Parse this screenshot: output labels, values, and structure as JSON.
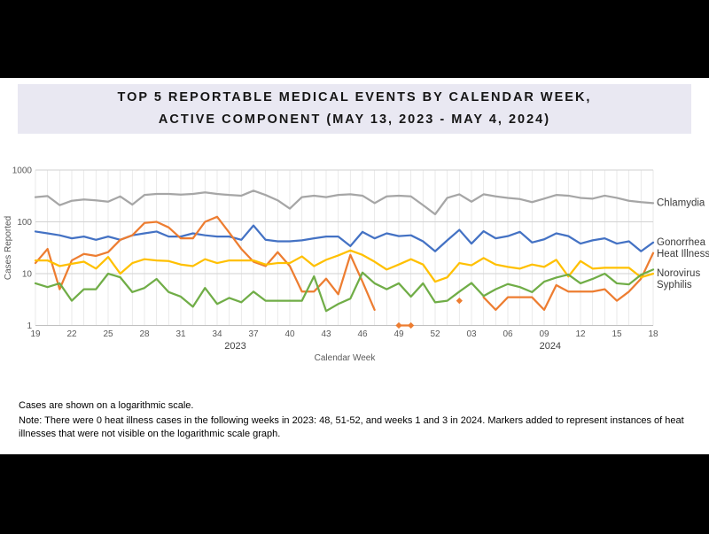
{
  "title": {
    "line1": "TOP 5 REPORTABLE MEDICAL EVENTS BY CALENDAR WEEK,",
    "line2": "ACTIVE COMPONENT (MAY 13, 2023 - MAY 4, 2024)",
    "banner_color": "#e9e8f2"
  },
  "footnotes": {
    "scale": "Cases are shown on a logarithmic scale.",
    "note": "Note: There were 0 heat illness cases in the following weeks in 2023: 48, 51-52, and weeks 1 and 3 in 2024. Markers added to represent instances of heat illnesses that were not visible on the logarithmic scale graph."
  },
  "chart_data": {
    "type": "line",
    "y_scale": "log",
    "ylim": [
      1,
      1000
    ],
    "y_ticks": [
      1,
      10,
      100,
      1000
    ],
    "xlabel": "Calendar Week",
    "ylabel": "Cases Reported",
    "grid": "on",
    "legend_position": "right-of-line-ends",
    "categories": [
      "19",
      "20",
      "21",
      "22",
      "23",
      "24",
      "25",
      "26",
      "27",
      "28",
      "29",
      "30",
      "31",
      "32",
      "33",
      "34",
      "35",
      "36",
      "37",
      "38",
      "39",
      "40",
      "41",
      "42",
      "43",
      "44",
      "45",
      "46",
      "47",
      "48",
      "49",
      "50",
      "51",
      "52",
      "01",
      "02",
      "03",
      "04",
      "05",
      "06",
      "07",
      "08",
      "09",
      "10",
      "11",
      "12",
      "13",
      "14",
      "15",
      "16",
      "17",
      "18"
    ],
    "x_tick_labels": [
      "19",
      "22",
      "25",
      "28",
      "31",
      "34",
      "37",
      "40",
      "43",
      "46",
      "49",
      "52",
      "03",
      "06",
      "09",
      "12",
      "15",
      "18"
    ],
    "year_groups": [
      {
        "label": "2023",
        "weeks": 34
      },
      {
        "label": "2024",
        "weeks": 18
      }
    ],
    "series": [
      {
        "name": "Chlamydia",
        "color": "#a6a6a6",
        "values": [
          300,
          315,
          210,
          255,
          270,
          260,
          245,
          310,
          215,
          330,
          345,
          345,
          335,
          345,
          370,
          345,
          330,
          320,
          400,
          330,
          260,
          180,
          300,
          320,
          300,
          330,
          340,
          320,
          230,
          310,
          320,
          310,
          210,
          140,
          290,
          340,
          245,
          340,
          310,
          290,
          275,
          240,
          280,
          330,
          320,
          290,
          280,
          320,
          290,
          255,
          240,
          230
        ]
      },
      {
        "name": "Gonorrhea",
        "color": "#4472c4",
        "values": [
          65,
          60,
          55,
          48,
          52,
          45,
          52,
          45,
          55,
          60,
          65,
          52,
          52,
          60,
          55,
          52,
          52,
          45,
          85,
          45,
          42,
          42,
          44,
          48,
          52,
          52,
          34,
          64,
          48,
          60,
          53,
          55,
          42,
          27,
          44,
          70,
          38,
          66,
          48,
          53,
          64,
          40,
          46,
          60,
          53,
          38,
          44,
          48,
          38,
          42,
          27,
          40
        ]
      },
      {
        "name": "Heat Illnesses",
        "color": "#ed7d31",
        "values": [
          16,
          30,
          5,
          18,
          24,
          22,
          26,
          45,
          55,
          95,
          100,
          78,
          48,
          48,
          100,
          125,
          62,
          30,
          17,
          14,
          26,
          14,
          4.5,
          4.5,
          8,
          4,
          23,
          7,
          2,
          null,
          1,
          1,
          null,
          null,
          null,
          3,
          null,
          3.5,
          2,
          3.5,
          3.5,
          3.5,
          2,
          6,
          4.5,
          4.5,
          4.5,
          5,
          3,
          4.5,
          8,
          25
        ],
        "markers": [
          {
            "category": "49",
            "value": 1
          },
          {
            "category": "50",
            "value": 1
          },
          {
            "category": "02",
            "value": 3
          }
        ]
      },
      {
        "name": "Norovirus",
        "color": "#ffc000",
        "values": [
          18,
          18,
          14,
          15.5,
          17,
          12.5,
          21,
          10,
          16,
          19,
          18,
          17.5,
          15,
          14,
          19,
          16,
          18,
          18,
          18,
          15,
          16,
          16,
          21.5,
          14,
          18.5,
          22.5,
          28,
          23,
          17,
          12,
          15,
          19,
          15,
          7,
          8.5,
          16,
          14.5,
          20,
          15,
          13.5,
          12.5,
          15,
          13.5,
          18.5,
          8.8,
          17.5,
          12.5,
          13,
          13,
          13,
          8.5,
          10
        ]
      },
      {
        "name": "Syphilis",
        "color": "#70ad47",
        "values": [
          6.5,
          5.5,
          6.5,
          3,
          5,
          5,
          10,
          8.5,
          4.4,
          5.3,
          7.9,
          4.4,
          3.6,
          2.3,
          5.3,
          2.6,
          3.4,
          2.8,
          4.5,
          3,
          3,
          3,
          3,
          8.9,
          1.9,
          2.6,
          3.3,
          10.5,
          6.5,
          5,
          6.5,
          3.6,
          6.5,
          2.8,
          3,
          4.5,
          6.6,
          3.7,
          5,
          6.3,
          5.5,
          4.4,
          7,
          8.4,
          9.6,
          6.5,
          7.9,
          10,
          6.5,
          6.2,
          9.5,
          12
        ]
      }
    ]
  }
}
